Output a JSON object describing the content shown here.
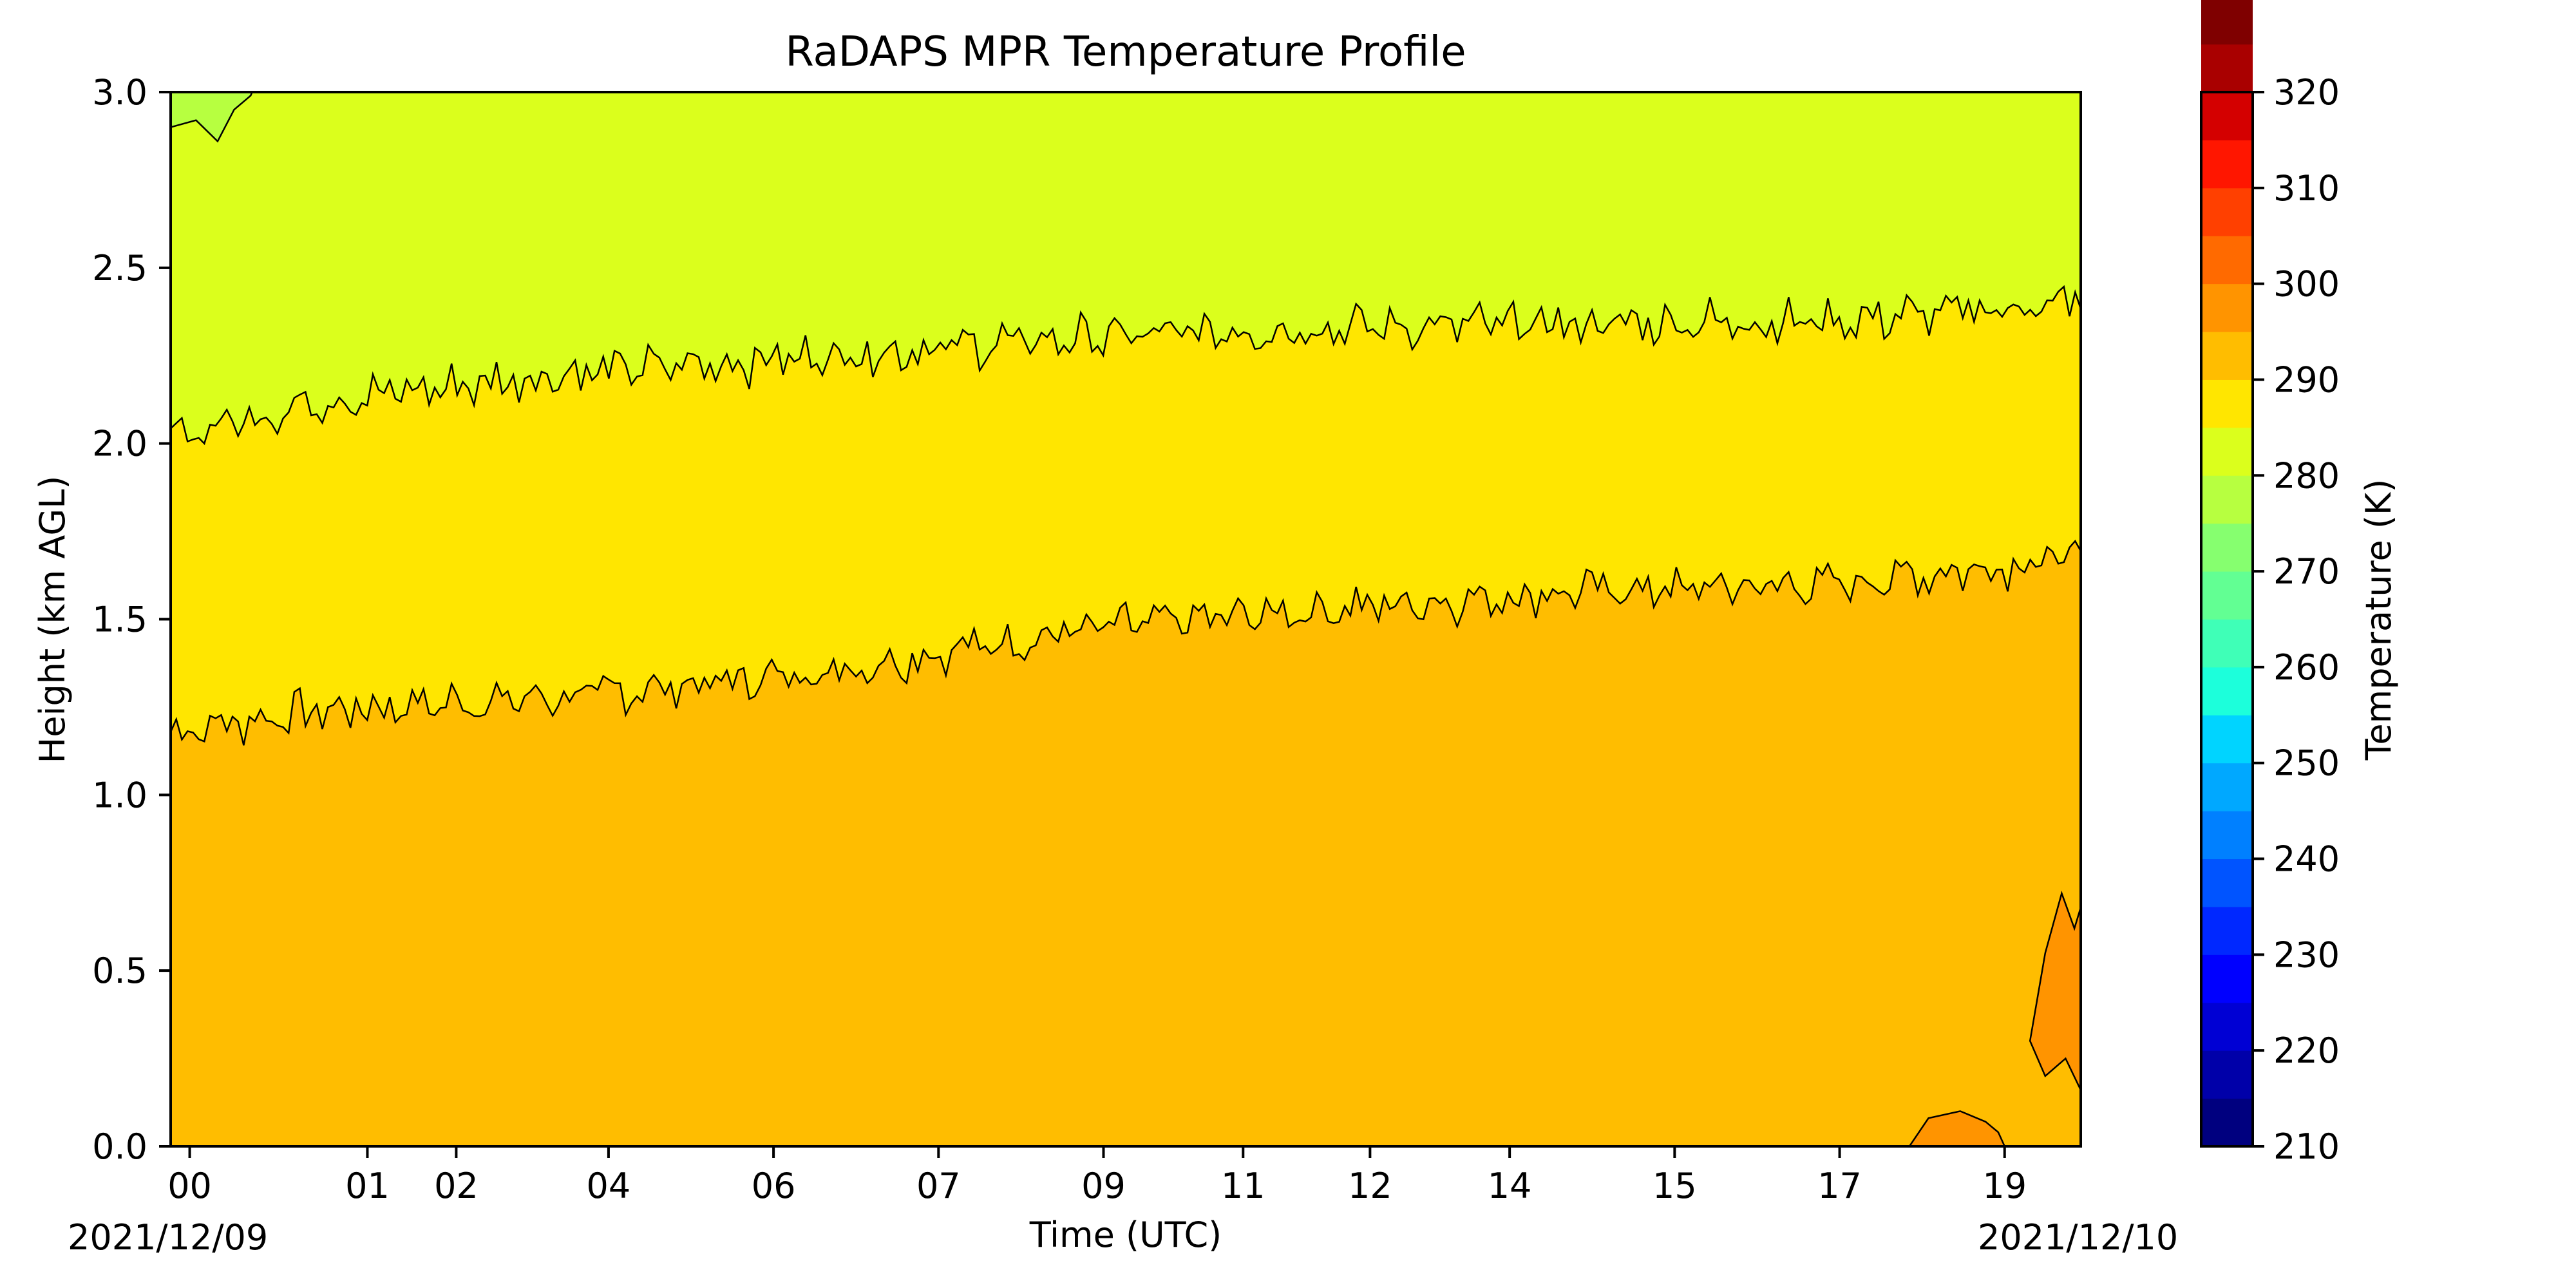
{
  "chart_data": {
    "type": "heatmap",
    "subtype": "filled-contour",
    "title": "RaDAPS MPR Temperature Profile",
    "xlabel": "Time (UTC)",
    "ylabel": "Height (km AGL)",
    "x_tick_labels": [
      "00",
      "01",
      "02",
      "04",
      "06",
      "07",
      "09",
      "11",
      "12",
      "14",
      "15",
      "17",
      "19"
    ],
    "x_tick_hours": [
      0.0,
      1.4,
      2.1,
      3.3,
      4.6,
      5.9,
      7.2,
      8.3,
      9.3,
      10.4,
      11.7,
      13.0,
      14.3
    ],
    "x_range_hours": [
      -0.15,
      14.9
    ],
    "x_start_date": "2021/12/09",
    "x_end_date": "2021/12/10",
    "ylim": [
      0.0,
      3.0
    ],
    "y_ticks": [
      "0.0",
      "0.5",
      "1.0",
      "1.5",
      "2.0",
      "2.5",
      "3.0"
    ],
    "colorbar": {
      "label": "Temperature (K)",
      "range": [
        210,
        320
      ],
      "step": 5,
      "tick_labels": [
        "210",
        "220",
        "230",
        "240",
        "250",
        "260",
        "270",
        "280",
        "290",
        "300",
        "310",
        "320"
      ],
      "colors": [
        "#00007f",
        "#0000a9",
        "#0000d4",
        "#0000ff",
        "#0028ff",
        "#0054ff",
        "#0080ff",
        "#00a8ff",
        "#00d4ff",
        "#1cffdb",
        "#3fffb7",
        "#62ff93",
        "#86ff6f",
        "#b7ff40",
        "#dbff1c",
        "#ffe600",
        "#ffbd00",
        "#ff9400",
        "#ff6a00",
        "#ff4000",
        "#ff1600",
        "#d40000",
        "#a90000",
        "#7f0000"
      ]
    },
    "regions": [
      {
        "from_temp": 280,
        "to_temp": 285,
        "color": "#ffbd00",
        "extent": "below lower contour"
      },
      {
        "from_temp": 275,
        "to_temp": 280,
        "color": "#ffe600",
        "extent": "between contours"
      },
      {
        "from_temp": 270,
        "to_temp": 275,
        "color": "#dbff1c",
        "extent": "above upper contour"
      },
      {
        "from_temp": 265,
        "to_temp": 270,
        "color": "#b7ff40",
        "extent": "top-left corner"
      },
      {
        "from_temp": 285,
        "to_temp": 290,
        "color": "#ff9400",
        "extent": "lower-right corner"
      }
    ],
    "contours": [
      {
        "name": "lower",
        "hours": [
          -0.15,
          1.0,
          3.0,
          5.0,
          7.0,
          9.0,
          11.0,
          13.0,
          14.9
        ],
        "heights_km": [
          1.18,
          1.24,
          1.28,
          1.35,
          1.47,
          1.53,
          1.58,
          1.6,
          1.68
        ]
      },
      {
        "name": "upper",
        "hours": [
          -0.15,
          1.0,
          3.0,
          5.0,
          7.0,
          9.0,
          11.0,
          13.0,
          14.9
        ],
        "heights_km": [
          2.02,
          2.12,
          2.2,
          2.25,
          2.3,
          2.33,
          2.34,
          2.35,
          2.4
        ]
      }
    ],
    "grid": false,
    "legend": "none"
  }
}
